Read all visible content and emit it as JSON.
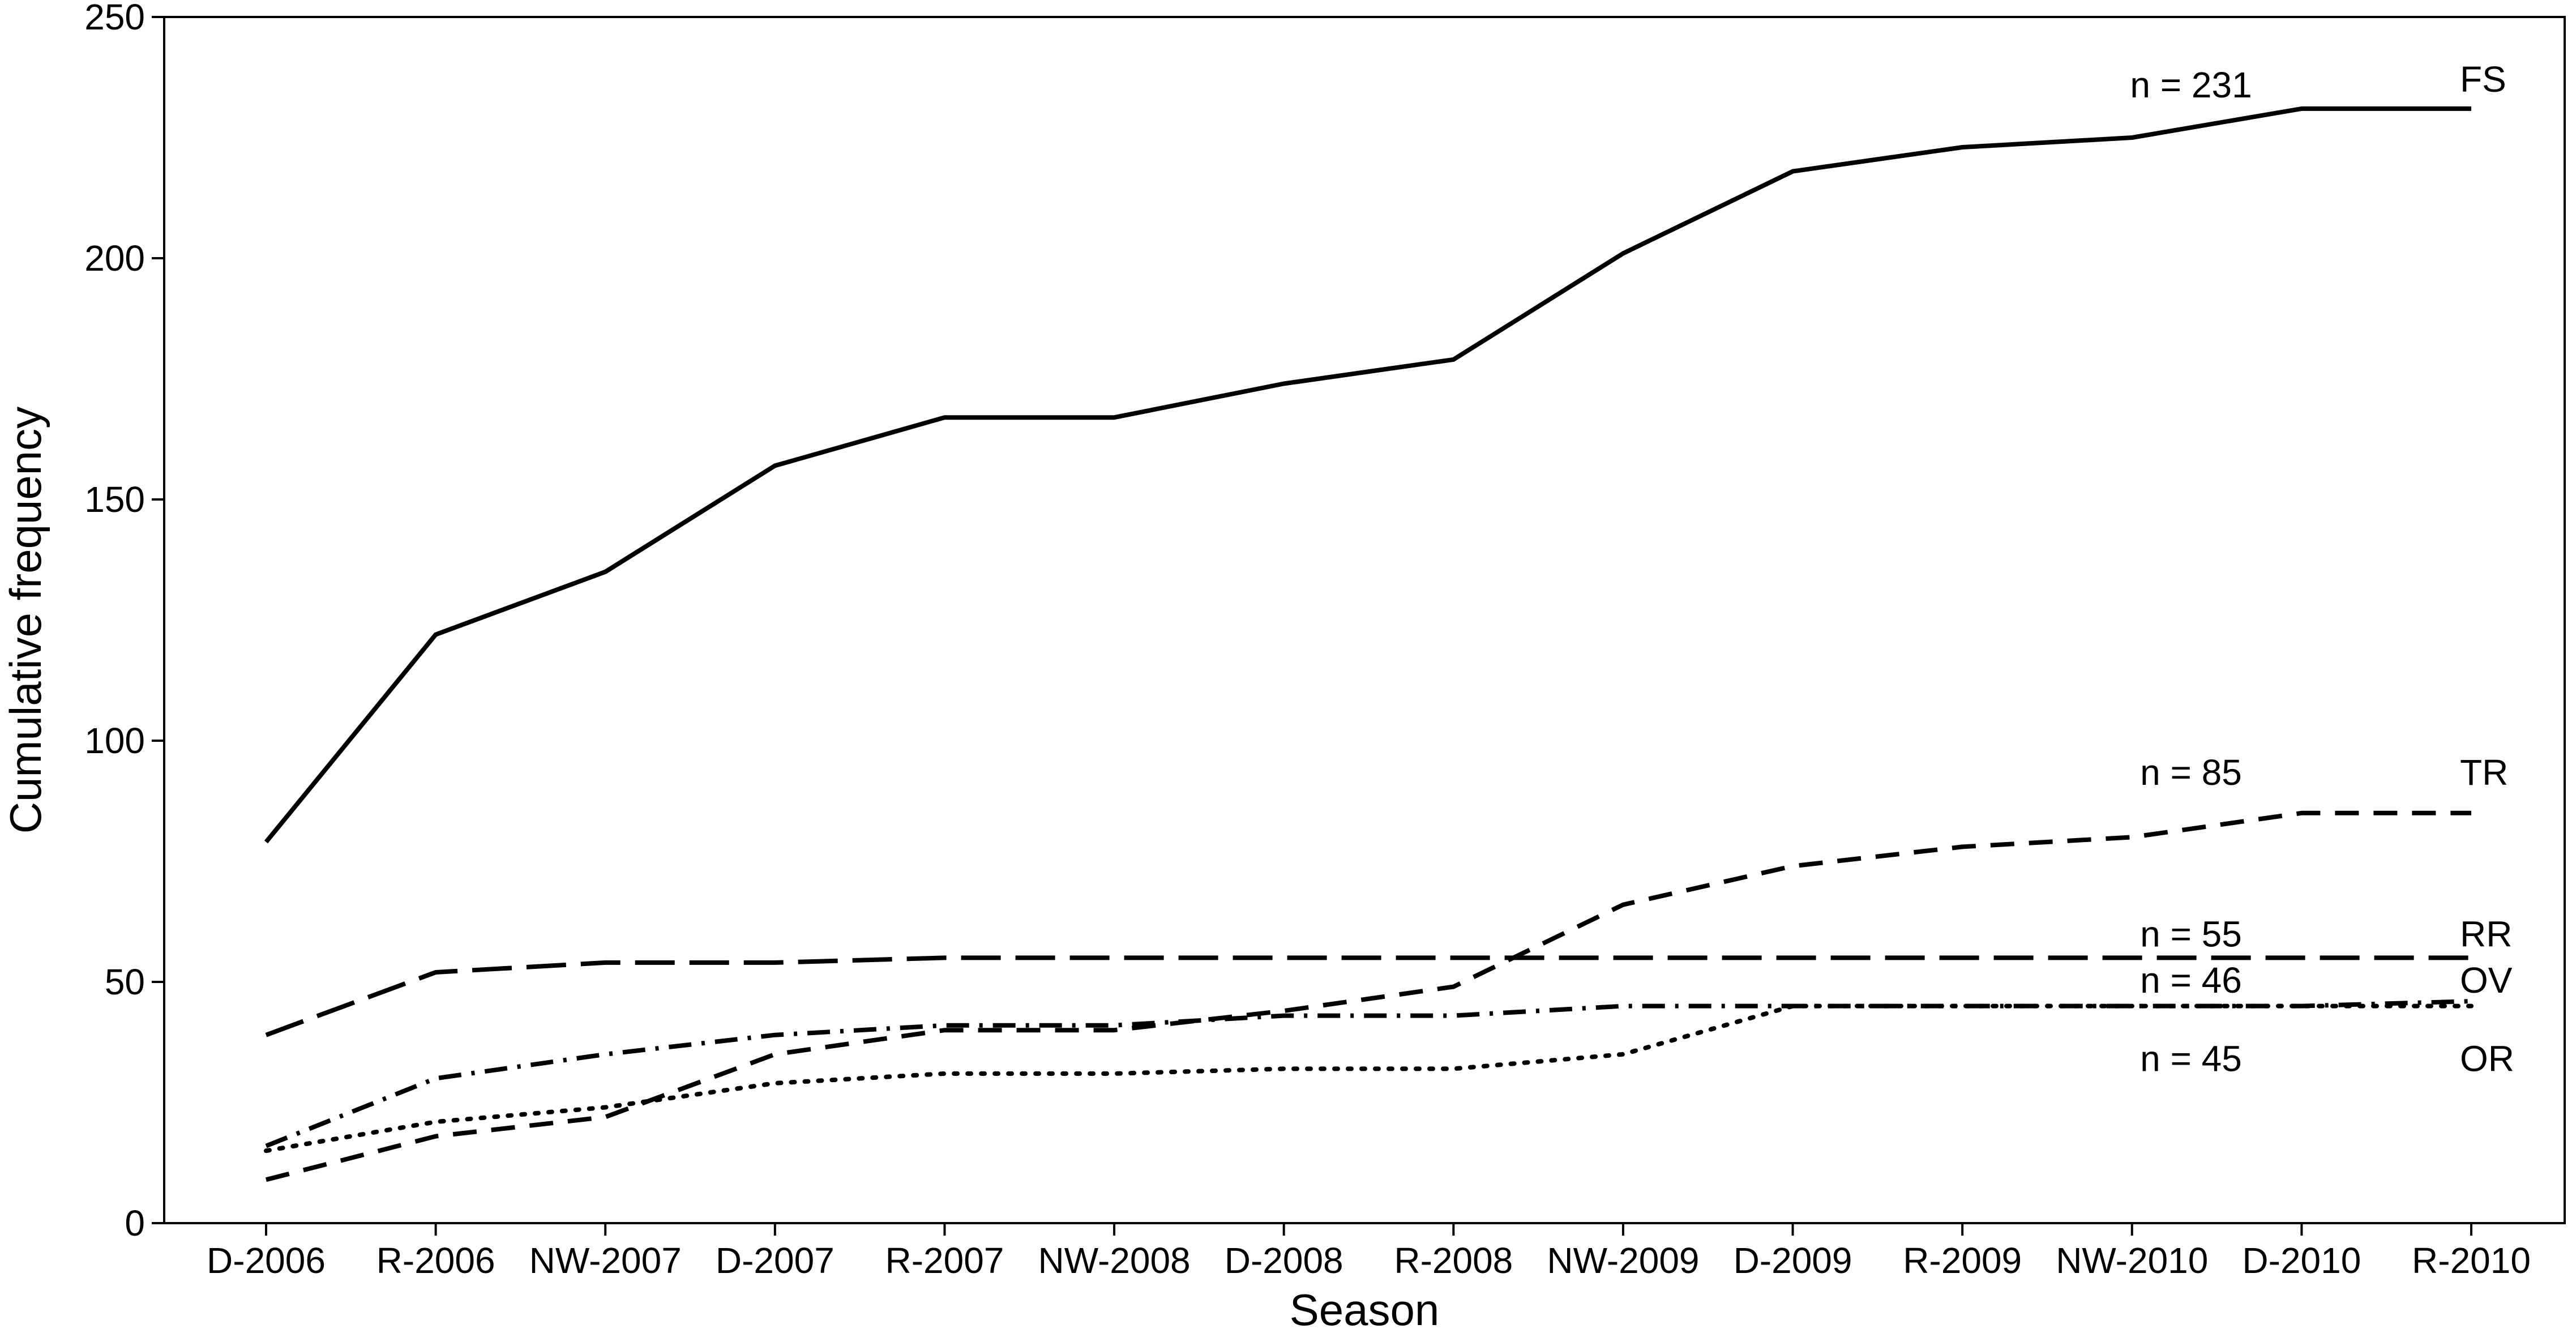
{
  "chart_data": {
    "type": "line",
    "xlabel": "Season",
    "ylabel": "Cumulative frequency",
    "categories": [
      "D-2006",
      "R-2006",
      "NW-2007",
      "D-2007",
      "R-2007",
      "NW-2008",
      "D-2008",
      "R-2008",
      "NW-2009",
      "D-2009",
      "R-2009",
      "NW-2010",
      "D-2010",
      "R-2010"
    ],
    "ylim": [
      0,
      250
    ],
    "yticks": [
      0,
      50,
      100,
      150,
      200,
      250
    ],
    "grid": false,
    "series": [
      {
        "name": "FS",
        "n_label": "n = 231",
        "dash": "solid",
        "values": [
          79,
          122,
          135,
          157,
          167,
          167,
          174,
          179,
          201,
          218,
          223,
          225,
          231,
          231
        ]
      },
      {
        "name": "TR",
        "n_label": "n = 85",
        "dash": "dashed",
        "values": [
          9,
          18,
          22,
          35,
          40,
          40,
          44,
          49,
          66,
          74,
          78,
          80,
          85,
          85
        ]
      },
      {
        "name": "RR",
        "n_label": "n = 55",
        "dash": "longdash",
        "values": [
          39,
          52,
          54,
          54,
          55,
          55,
          55,
          55,
          55,
          55,
          55,
          55,
          55,
          55
        ]
      },
      {
        "name": "OV",
        "n_label": "n = 46",
        "dash": "dotdash",
        "values": [
          16,
          30,
          35,
          39,
          41,
          41,
          43,
          43,
          45,
          45,
          45,
          45,
          45,
          46
        ]
      },
      {
        "name": "OR",
        "n_label": "n = 45",
        "dash": "dotted",
        "values": [
          15,
          21,
          24,
          29,
          31,
          31,
          32,
          32,
          35,
          45,
          45,
          45,
          45,
          45
        ]
      }
    ]
  }
}
